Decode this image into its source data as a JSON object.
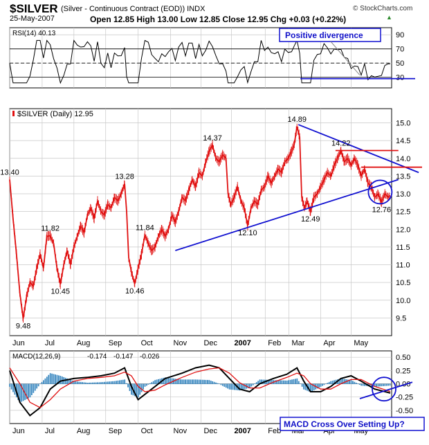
{
  "header": {
    "ticker": "$SILVER",
    "contract": "(Silver - Continuous Contract (EOD)) INDX",
    "date": "25-May-2007",
    "ohlc": "Open 12.85 High 13.00 Low 12.85 Close 12.95 Chg +0.03 (+0.22%)",
    "watermark": "© StockCharts.com",
    "chg_arrow": "▲"
  },
  "chart_data": [
    {
      "type": "line",
      "title": "RSI(14) 40.13",
      "ylim": [
        15,
        100
      ],
      "yticks": [
        "90",
        "70",
        "50",
        "30"
      ],
      "ytick_values": [
        90,
        70,
        50,
        30
      ],
      "overbought": 70,
      "oversold": 30,
      "annotation": "Positive divergence"
    },
    {
      "type": "line",
      "title": "$SILVER (Daily) 12.95",
      "ylim": [
        9.0,
        15.4
      ],
      "yticks": [
        "15.0",
        "14.5",
        "14.0",
        "13.5",
        "13.0",
        "12.5",
        "12.0",
        "11.5",
        "11.0",
        "10.5",
        "10.0",
        "9.5"
      ],
      "ytick_values": [
        15.0,
        14.5,
        14.0,
        13.5,
        13.0,
        12.5,
        12.0,
        11.5,
        11.0,
        10.5,
        10.0,
        9.5
      ],
      "series": [
        {
          "points": [
            [
              0,
              13.4
            ],
            [
              5,
              12.3
            ],
            [
              10,
              11.3
            ],
            [
              15,
              10.2
            ],
            [
              20,
              9.48
            ],
            [
              25,
              10.1
            ],
            [
              30,
              10.5
            ],
            [
              35,
              10.4
            ],
            [
              40,
              10.9
            ],
            [
              45,
              11.3
            ],
            [
              50,
              10.9
            ],
            [
              55,
              11.8
            ],
            [
              60,
              11.82
            ],
            [
              65,
              11.6
            ],
            [
              70,
              10.9
            ],
            [
              75,
              10.45
            ],
            [
              80,
              11.0
            ],
            [
              85,
              11.4
            ],
            [
              90,
              11.0
            ],
            [
              95,
              11.5
            ],
            [
              100,
              11.8
            ],
            [
              105,
              12.1
            ],
            [
              110,
              11.9
            ],
            [
              115,
              12.4
            ],
            [
              120,
              12.6
            ],
            [
              125,
              12.3
            ],
            [
              130,
              12.8
            ],
            [
              135,
              12.5
            ],
            [
              140,
              12.4
            ],
            [
              145,
              12.7
            ],
            [
              150,
              12.6
            ],
            [
              155,
              12.9
            ],
            [
              160,
              12.8
            ],
            [
              165,
              13.0
            ],
            [
              170,
              13.28
            ],
            [
              173,
              12.5
            ],
            [
              176,
              11.2
            ],
            [
              180,
              10.8
            ],
            [
              185,
              10.46
            ],
            [
              190,
              10.9
            ],
            [
              195,
              11.3
            ],
            [
              200,
              11.84
            ],
            [
              205,
              11.6
            ],
            [
              210,
              11.4
            ],
            [
              215,
              11.5
            ],
            [
              220,
              11.8
            ],
            [
              225,
              12.0
            ],
            [
              230,
              11.8
            ],
            [
              235,
              12.0
            ],
            [
              240,
              12.4
            ],
            [
              245,
              12.2
            ],
            [
              250,
              12.5
            ],
            [
              255,
              12.9
            ],
            [
              260,
              12.8
            ],
            [
              265,
              13.1
            ],
            [
              270,
              13.4
            ],
            [
              275,
              13.2
            ],
            [
              280,
              13.6
            ],
            [
              285,
              13.5
            ],
            [
              290,
              13.9
            ],
            [
              295,
              14.2
            ],
            [
              300,
              14.37
            ],
            [
              305,
              14.0
            ],
            [
              310,
              13.9
            ],
            [
              315,
              14.1
            ],
            [
              320,
              14.0
            ],
            [
              323,
              13.0
            ],
            [
              327,
              12.7
            ],
            [
              332,
              12.9
            ],
            [
              337,
              13.2
            ],
            [
              342,
              12.8
            ],
            [
              347,
              12.6
            ],
            [
              352,
              12.1
            ],
            [
              357,
              12.6
            ],
            [
              362,
              12.8
            ],
            [
              367,
              12.7
            ],
            [
              372,
              13.1
            ],
            [
              377,
              13.2
            ],
            [
              382,
              13.5
            ],
            [
              387,
              13.3
            ],
            [
              392,
              13.5
            ],
            [
              397,
              13.7
            ],
            [
              402,
              13.6
            ],
            [
              407,
              13.9
            ],
            [
              412,
              14.0
            ],
            [
              417,
              14.2
            ],
            [
              421,
              14.4
            ],
            [
              425,
              14.89
            ],
            [
              429,
              14.6
            ],
            [
              432,
              12.9
            ],
            [
              436,
              12.6
            ],
            [
              440,
              12.8
            ],
            [
              445,
              12.49
            ],
            [
              450,
              12.9
            ],
            [
              455,
              13.0
            ],
            [
              460,
              13.2
            ],
            [
              465,
              13.4
            ],
            [
              470,
              13.6
            ],
            [
              475,
              13.5
            ],
            [
              480,
              13.8
            ],
            [
              485,
              14.0
            ],
            [
              490,
              14.22
            ],
            [
              495,
              13.9
            ],
            [
              500,
              14.0
            ],
            [
              505,
              13.8
            ],
            [
              510,
              14.0
            ],
            [
              515,
              13.8
            ],
            [
              520,
              13.5
            ],
            [
              525,
              13.7
            ],
            [
              530,
              13.3
            ],
            [
              535,
              13.2
            ],
            [
              540,
              12.9
            ],
            [
              545,
              13.0
            ],
            [
              550,
              12.76
            ],
            [
              555,
              13.0
            ],
            [
              560,
              12.9
            ],
            [
              563,
              12.95
            ]
          ]
        }
      ],
      "price_labels": [
        {
          "text": "13.40",
          "x": 0,
          "y": 13.4
        },
        {
          "text": "9.48",
          "x": 20,
          "y": 9.48
        },
        {
          "text": "11.82",
          "x": 60,
          "y": 11.82
        },
        {
          "text": "10.45",
          "x": 75,
          "y": 10.45
        },
        {
          "text": "13.28",
          "x": 170,
          "y": 13.28
        },
        {
          "text": "10.46",
          "x": 185,
          "y": 10.46
        },
        {
          "text": "11.84",
          "x": 200,
          "y": 11.84
        },
        {
          "text": "14.37",
          "x": 300,
          "y": 14.37
        },
        {
          "text": "12.10",
          "x": 352,
          "y": 12.1
        },
        {
          "text": "14.89",
          "x": 425,
          "y": 14.89
        },
        {
          "text": "12.49",
          "x": 445,
          "y": 12.49
        },
        {
          "text": "14.22",
          "x": 490,
          "y": 14.22
        },
        {
          "text": "12.76",
          "x": 550,
          "y": 12.76
        }
      ],
      "trendlines": [
        {
          "color": "#1010d0",
          "x1": 245,
          "y1": 11.4,
          "x2": 575,
          "y2": 13.4
        },
        {
          "color": "#1010d0",
          "x1": 427,
          "y1": 14.95,
          "x2": 605,
          "y2": 13.6
        },
        {
          "color": "#e01010",
          "x1": 482,
          "y1": 14.22,
          "x2": 575,
          "y2": 14.22
        },
        {
          "color": "#e01010",
          "x1": 520,
          "y1": 13.75,
          "x2": 610,
          "y2": 13.75
        }
      ]
    },
    {
      "type": "line",
      "title": "MACD(12,26,9)",
      "title_values": [
        "-0.174",
        "-0.147",
        "-0.026"
      ],
      "ylim": [
        -0.75,
        0.62
      ],
      "yticks": [
        "0.50",
        "0.25",
        "0.00",
        "-0.25",
        "-0.50"
      ],
      "ytick_values": [
        0.5,
        0.25,
        0.0,
        -0.25,
        -0.5
      ],
      "annotation": "MACD Cross Over Setting Up?",
      "series": [
        {
          "name": "MACD",
          "color": "#000000",
          "points": [
            [
              0,
              0.25
            ],
            [
              15,
              -0.35
            ],
            [
              30,
              -0.6
            ],
            [
              45,
              -0.45
            ],
            [
              60,
              -0.1
            ],
            [
              75,
              0.05
            ],
            [
              95,
              0.1
            ],
            [
              115,
              0.12
            ],
            [
              135,
              0.15
            ],
            [
              155,
              0.2
            ],
            [
              170,
              0.3
            ],
            [
              180,
              -0.05
            ],
            [
              190,
              -0.3
            ],
            [
              200,
              -0.2
            ],
            [
              215,
              -0.05
            ],
            [
              230,
              0.1
            ],
            [
              255,
              0.2
            ],
            [
              275,
              0.3
            ],
            [
              295,
              0.35
            ],
            [
              310,
              0.3
            ],
            [
              325,
              0.1
            ],
            [
              340,
              -0.1
            ],
            [
              355,
              -0.15
            ],
            [
              370,
              0.0
            ],
            [
              390,
              0.1
            ],
            [
              410,
              0.18
            ],
            [
              425,
              0.3
            ],
            [
              435,
              0.05
            ],
            [
              445,
              -0.15
            ],
            [
              460,
              -0.15
            ],
            [
              475,
              -0.05
            ],
            [
              490,
              0.1
            ],
            [
              505,
              0.15
            ],
            [
              520,
              0.05
            ],
            [
              540,
              -0.1
            ],
            [
              563,
              -0.174
            ]
          ]
        },
        {
          "name": "Signal",
          "color": "#e01010",
          "points": [
            [
              0,
              0.3
            ],
            [
              15,
              0.0
            ],
            [
              30,
              -0.35
            ],
            [
              45,
              -0.45
            ],
            [
              60,
              -0.3
            ],
            [
              75,
              -0.1
            ],
            [
              95,
              0.05
            ],
            [
              115,
              0.1
            ],
            [
              135,
              0.12
            ],
            [
              155,
              0.15
            ],
            [
              170,
              0.22
            ],
            [
              180,
              0.15
            ],
            [
              190,
              -0.05
            ],
            [
              200,
              -0.15
            ],
            [
              215,
              -0.12
            ],
            [
              230,
              -0.02
            ],
            [
              255,
              0.12
            ],
            [
              275,
              0.22
            ],
            [
              295,
              0.28
            ],
            [
              310,
              0.3
            ],
            [
              325,
              0.2
            ],
            [
              340,
              0.02
            ],
            [
              355,
              -0.08
            ],
            [
              370,
              -0.08
            ],
            [
              390,
              0.03
            ],
            [
              410,
              0.12
            ],
            [
              425,
              0.2
            ],
            [
              435,
              0.15
            ],
            [
              445,
              0.0
            ],
            [
              460,
              -0.1
            ],
            [
              475,
              -0.1
            ],
            [
              490,
              0.0
            ],
            [
              505,
              0.08
            ],
            [
              520,
              0.08
            ],
            [
              540,
              -0.05
            ],
            [
              563,
              -0.147
            ]
          ]
        }
      ]
    }
  ],
  "x_axis": {
    "labels": [
      "Jun",
      "Jul",
      "Aug",
      "Sep",
      "Oct",
      "Nov",
      "Dec",
      "2007",
      "Feb",
      "Mar",
      "Apr",
      "May"
    ],
    "positions": [
      0,
      48,
      95,
      142,
      190,
      238,
      283,
      328,
      378,
      413,
      460,
      505
    ]
  },
  "colors": {
    "price": "#e01010",
    "trend": "#1010d0",
    "grid": "#c8c8c8",
    "histogram": "#3a88c0"
  }
}
